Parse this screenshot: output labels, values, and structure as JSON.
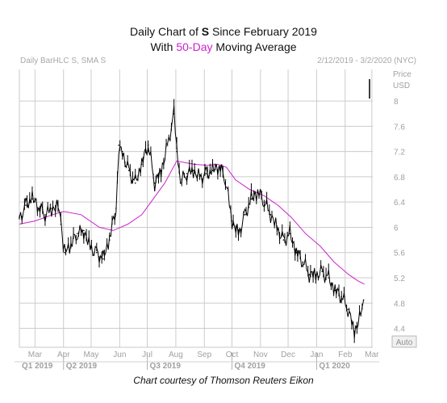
{
  "title": {
    "line1_prefix": "Daily Chart of ",
    "line1_ticker": "S",
    "line1_suffix": " Since February 2019",
    "line2_prefix": "With ",
    "line2_highlight": "50-Day",
    "line2_suffix": " Moving Average"
  },
  "header": {
    "left": "Daily BarHLC S, SMA S",
    "right": "2/12/2019 - 3/2/2020 (NYC)"
  },
  "units": {
    "price": "Price",
    "currency": "USD"
  },
  "auto_label": "Auto",
  "credit": "Chart courtesy of Thomson Reuters Eikon",
  "colors": {
    "price": "#000000",
    "sma": "#cc22cc",
    "grid": "#cccccc",
    "axis_text": "#a0a0a0"
  },
  "chart_data": {
    "type": "line",
    "title": "Daily Chart of S Since February 2019",
    "subtitle": "With 50-Day Moving Average",
    "ylabel": "Price USD",
    "ylim": [
      4.1,
      8.5
    ],
    "y_ticks": [
      4.4,
      4.8,
      5.2,
      5.6,
      6,
      6.4,
      6.8,
      7.2,
      7.6,
      8
    ],
    "x_ticks": [
      {
        "label": "Mar",
        "date": "2019-03-01"
      },
      {
        "label": "Apr",
        "date": "2019-04-01"
      },
      {
        "label": "May",
        "date": "2019-05-01"
      },
      {
        "label": "Jun",
        "date": "2019-06-01"
      },
      {
        "label": "Jul",
        "date": "2019-07-01"
      },
      {
        "label": "Aug",
        "date": "2019-08-01"
      },
      {
        "label": "Sep",
        "date": "2019-09-01"
      },
      {
        "label": "Oct",
        "date": "2019-10-01"
      },
      {
        "label": "Nov",
        "date": "2019-11-01"
      },
      {
        "label": "Dec",
        "date": "2019-12-01"
      },
      {
        "label": "Jan",
        "date": "2020-01-01"
      },
      {
        "label": "Feb",
        "date": "2020-02-01"
      },
      {
        "label": "Mar",
        "date": "2020-03-01"
      }
    ],
    "quarters": [
      {
        "label": "Q1 2019",
        "date": "2019-02-12"
      },
      {
        "label": "Q2 2019",
        "date": "2019-04-01"
      },
      {
        "label": "Q3 2019",
        "date": "2019-07-01"
      },
      {
        "label": "Q4 2019",
        "date": "2019-10-01"
      },
      {
        "label": "Q1 2020",
        "date": "2020-01-01"
      }
    ],
    "grid": true,
    "series": [
      {
        "name": "S",
        "style": "hlc-bars",
        "points": [
          [
            "2019-02-12",
            6.15
          ],
          [
            "2019-02-19",
            6.35
          ],
          [
            "2019-02-26",
            6.45
          ],
          [
            "2019-03-05",
            6.3
          ],
          [
            "2019-03-12",
            6.2
          ],
          [
            "2019-03-19",
            6.3
          ],
          [
            "2019-03-26",
            6.35
          ],
          [
            "2019-03-29",
            6.05
          ],
          [
            "2019-04-02",
            5.6
          ],
          [
            "2019-04-09",
            5.7
          ],
          [
            "2019-04-16",
            5.9
          ],
          [
            "2019-04-23",
            5.95
          ],
          [
            "2019-04-30",
            5.7
          ],
          [
            "2019-05-07",
            5.6
          ],
          [
            "2019-05-14",
            5.5
          ],
          [
            "2019-05-21",
            5.8
          ],
          [
            "2019-05-28",
            6.3
          ],
          [
            "2019-05-31",
            7.3
          ],
          [
            "2019-06-04",
            7.2
          ],
          [
            "2019-06-11",
            6.9
          ],
          [
            "2019-06-18",
            6.7
          ],
          [
            "2019-06-25",
            7.0
          ],
          [
            "2019-07-02",
            7.3
          ],
          [
            "2019-07-09",
            6.7
          ],
          [
            "2019-07-16",
            6.9
          ],
          [
            "2019-07-23",
            7.3
          ],
          [
            "2019-07-30",
            7.8
          ],
          [
            "2019-08-02",
            7.2
          ],
          [
            "2019-08-06",
            6.7
          ],
          [
            "2019-08-13",
            6.85
          ],
          [
            "2019-08-20",
            6.9
          ],
          [
            "2019-08-27",
            6.8
          ],
          [
            "2019-09-03",
            6.85
          ],
          [
            "2019-09-10",
            6.9
          ],
          [
            "2019-09-17",
            6.95
          ],
          [
            "2019-09-24",
            6.75
          ],
          [
            "2019-10-01",
            6.1
          ],
          [
            "2019-10-08",
            5.9
          ],
          [
            "2019-10-15",
            6.2
          ],
          [
            "2019-10-22",
            6.45
          ],
          [
            "2019-10-29",
            6.55
          ],
          [
            "2019-11-05",
            6.4
          ],
          [
            "2019-11-12",
            6.2
          ],
          [
            "2019-11-19",
            6.0
          ],
          [
            "2019-11-26",
            5.8
          ],
          [
            "2019-12-03",
            5.9
          ],
          [
            "2019-12-10",
            5.6
          ],
          [
            "2019-12-17",
            5.45
          ],
          [
            "2019-12-24",
            5.25
          ],
          [
            "2019-12-31",
            5.25
          ],
          [
            "2020-01-07",
            5.3
          ],
          [
            "2020-01-14",
            5.2
          ],
          [
            "2020-01-21",
            5.0
          ],
          [
            "2020-01-28",
            4.9
          ],
          [
            "2020-02-04",
            4.7
          ],
          [
            "2020-02-11",
            4.35
          ],
          [
            "2020-02-18",
            4.6
          ],
          [
            "2020-02-21",
            4.85
          ]
        ]
      },
      {
        "name": "SMA",
        "points": [
          [
            "2019-02-12",
            6.05
          ],
          [
            "2019-03-01",
            6.1
          ],
          [
            "2019-03-20",
            6.2
          ],
          [
            "2019-04-01",
            6.25
          ],
          [
            "2019-04-20",
            6.2
          ],
          [
            "2019-05-10",
            6.0
          ],
          [
            "2019-05-25",
            5.95
          ],
          [
            "2019-06-10",
            6.05
          ],
          [
            "2019-06-25",
            6.2
          ],
          [
            "2019-07-05",
            6.4
          ],
          [
            "2019-07-20",
            6.7
          ],
          [
            "2019-08-02",
            7.05
          ],
          [
            "2019-08-20",
            7.0
          ],
          [
            "2019-09-05",
            6.98
          ],
          [
            "2019-09-15",
            7.0
          ],
          [
            "2019-09-25",
            6.95
          ],
          [
            "2019-10-05",
            6.75
          ],
          [
            "2019-10-20",
            6.6
          ],
          [
            "2019-11-05",
            6.5
          ],
          [
            "2019-11-20",
            6.35
          ],
          [
            "2019-12-05",
            6.15
          ],
          [
            "2019-12-20",
            5.9
          ],
          [
            "2020-01-05",
            5.7
          ],
          [
            "2020-01-20",
            5.45
          ],
          [
            "2020-02-05",
            5.25
          ],
          [
            "2020-02-15",
            5.15
          ],
          [
            "2020-02-22",
            5.1
          ]
        ]
      }
    ]
  }
}
